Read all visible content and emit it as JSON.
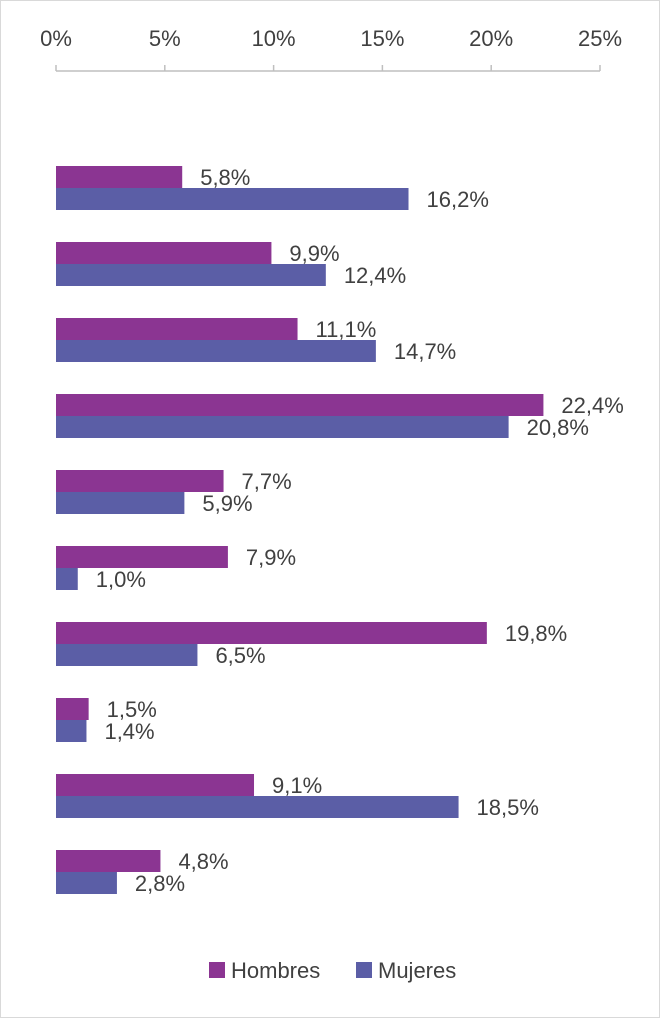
{
  "chart_data": {
    "type": "bar",
    "orientation": "horizontal",
    "title": "",
    "xlabel": "",
    "ylabel": "",
    "xlim": [
      0,
      25
    ],
    "x_ticks": [
      0,
      5,
      10,
      15,
      20,
      25
    ],
    "x_tick_labels": [
      "0%",
      "5%",
      "10%",
      "15%",
      "20%",
      "25%"
    ],
    "axis_position": "top",
    "grid": false,
    "legend_position": "bottom",
    "categories": [
      "",
      "",
      "",
      "",
      "",
      "",
      "",
      "",
      "",
      ""
    ],
    "series": [
      {
        "name": "Hombres",
        "color": "#8B3592",
        "values": [
          5.8,
          9.9,
          11.1,
          22.4,
          7.7,
          7.9,
          19.8,
          1.5,
          9.1,
          4.8
        ],
        "labels": [
          "5,8%",
          "9,9%",
          "11,1%",
          "22,4%",
          "7,7%",
          "7,9%",
          "19,8%",
          "1,5%",
          "9,1%",
          "4,8%"
        ]
      },
      {
        "name": "Mujeres",
        "color": "#5B5EA6",
        "values": [
          16.2,
          12.4,
          14.7,
          20.8,
          5.9,
          1.0,
          6.5,
          1.4,
          18.5,
          2.8
        ],
        "labels": [
          "16,2%",
          "12,4%",
          "14,7%",
          "20,8%",
          "5,9%",
          "1,0%",
          "6,5%",
          "1,4%",
          "18,5%",
          "2,8%"
        ]
      }
    ]
  }
}
